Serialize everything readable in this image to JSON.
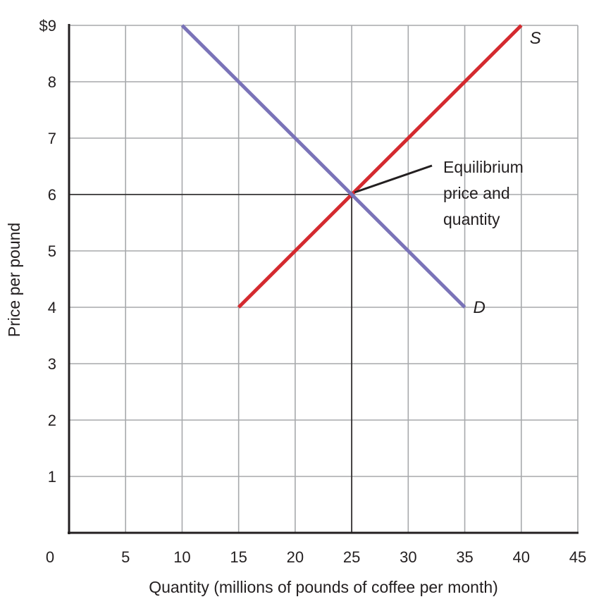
{
  "chart_data": {
    "type": "line",
    "xlabel": "Quantity (millions of pounds of coffee per month)",
    "ylabel": "Price per pound",
    "xlim": [
      0,
      45
    ],
    "ylim": [
      0,
      9
    ],
    "x_ticks": [
      "0",
      "5",
      "10",
      "15",
      "20",
      "25",
      "30",
      "35",
      "40",
      "45"
    ],
    "y_ticks": [
      "",
      "1",
      "2",
      "3",
      "4",
      "5",
      "6",
      "7",
      "8",
      "$9"
    ],
    "grid": true,
    "series": [
      {
        "name": "S",
        "color": "#d42a2f",
        "points": [
          [
            15,
            4
          ],
          [
            40,
            9
          ]
        ]
      },
      {
        "name": "D",
        "color": "#7a73b8",
        "points": [
          [
            10,
            9
          ],
          [
            35,
            4
          ]
        ]
      }
    ],
    "equilibrium": {
      "x": 25,
      "y": 6
    },
    "annotation": {
      "lines": [
        "Equilibrium",
        "price and",
        "quantity"
      ]
    }
  }
}
